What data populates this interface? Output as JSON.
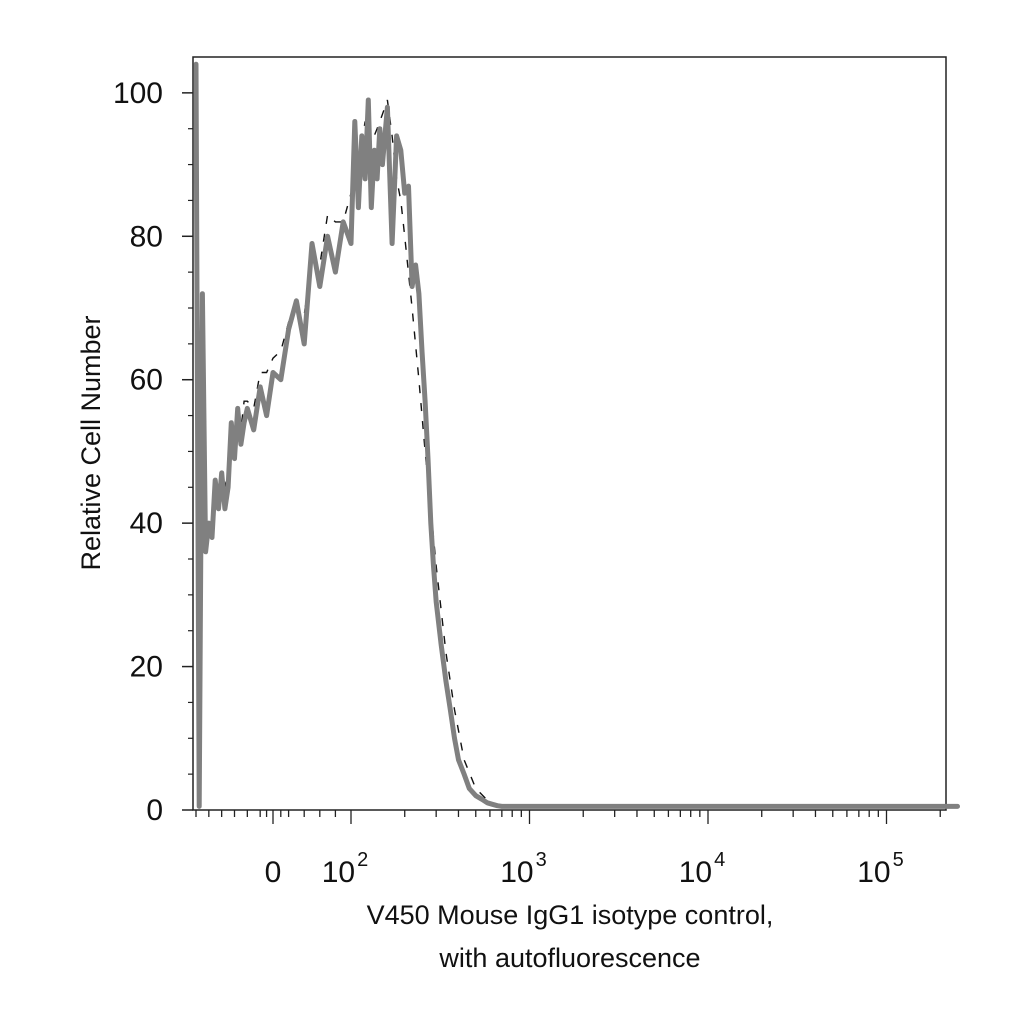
{
  "chart_data": {
    "type": "line",
    "title": "",
    "xlabel_lines": [
      "V450 Mouse IgG1 isotype control,",
      "with autofluorescence"
    ],
    "ylabel": "Relative Cell Number",
    "x_scale": "biexponential",
    "ylim": [
      0,
      105
    ],
    "y_ticks": [
      0,
      20,
      40,
      60,
      80,
      100
    ],
    "x_tick_labels": [
      {
        "value": 0,
        "base": "0",
        "exp": ""
      },
      {
        "value": 100,
        "base": "10",
        "exp": "2"
      },
      {
        "value": 1000,
        "base": "10",
        "exp": "3"
      },
      {
        "value": 10000,
        "base": "10",
        "exp": "4"
      },
      {
        "value": 100000,
        "base": "10",
        "exp": "5"
      }
    ],
    "grid": false,
    "legend": "none",
    "colors": {
      "filled_series": "#808080",
      "dashed_series": "#111111",
      "axis": "#222222"
    },
    "series": [
      {
        "style": "solid-gray",
        "x": [
          -120,
          -115,
          -110,
          -105,
          -100,
          -95,
          -90,
          -85,
          -80,
          -75,
          -70,
          -65,
          -60,
          -55,
          -50,
          -45,
          -40,
          -30,
          -20,
          -10,
          0,
          10,
          20,
          30,
          40,
          50,
          60,
          70,
          80,
          90,
          100,
          105,
          110,
          115,
          120,
          125,
          130,
          135,
          140,
          145,
          150,
          160,
          170,
          180,
          190,
          200,
          210,
          220,
          230,
          240,
          250,
          260,
          270,
          280,
          290,
          300,
          320,
          340,
          360,
          380,
          400,
          430,
          460,
          500,
          540,
          580,
          620,
          660,
          700,
          800,
          1000,
          2000,
          5000,
          10000,
          50000,
          100000,
          250000
        ],
        "y": [
          104,
          0.5,
          72,
          36,
          40,
          38,
          46,
          42,
          47,
          42,
          45,
          54,
          49,
          56,
          51,
          54,
          56,
          53,
          59,
          55,
          61,
          60,
          67,
          71,
          65,
          79,
          73,
          80,
          75,
          82,
          79,
          96,
          84,
          94,
          88,
          99,
          84,
          92,
          88,
          95,
          90,
          98,
          79,
          94,
          92,
          86,
          87,
          73,
          76,
          72,
          64,
          57,
          49,
          40,
          34,
          29,
          23,
          18,
          14,
          10,
          7,
          5,
          3,
          2,
          1.5,
          1,
          0.8,
          0.6,
          0.5,
          0.5,
          0.5,
          0.5,
          0.5,
          0.5,
          0.5,
          0.5,
          0.5
        ]
      },
      {
        "style": "dashed-black",
        "x": [
          -100,
          -95,
          -90,
          -85,
          -80,
          -75,
          -70,
          -65,
          -60,
          -55,
          -50,
          -45,
          -40,
          -30,
          -20,
          -10,
          0,
          10,
          20,
          30,
          40,
          50,
          60,
          70,
          80,
          90,
          100,
          110,
          120,
          130,
          140,
          150,
          160,
          170,
          180,
          190,
          200,
          220,
          240,
          260,
          280,
          300,
          340,
          380,
          430,
          500,
          600,
          700,
          1000,
          250000
        ],
        "y": [
          39,
          40,
          44,
          43,
          46,
          45,
          47,
          50,
          51,
          53,
          53,
          57,
          57,
          56,
          61,
          61,
          63,
          64,
          68,
          70,
          69,
          77,
          76,
          83,
          82,
          82,
          86,
          90,
          96,
          93,
          95,
          97,
          99,
          94,
          88,
          85,
          80,
          70,
          60,
          50,
          42,
          34,
          22,
          14,
          7,
          3,
          1,
          0.5,
          0.5,
          0.5
        ]
      }
    ]
  }
}
